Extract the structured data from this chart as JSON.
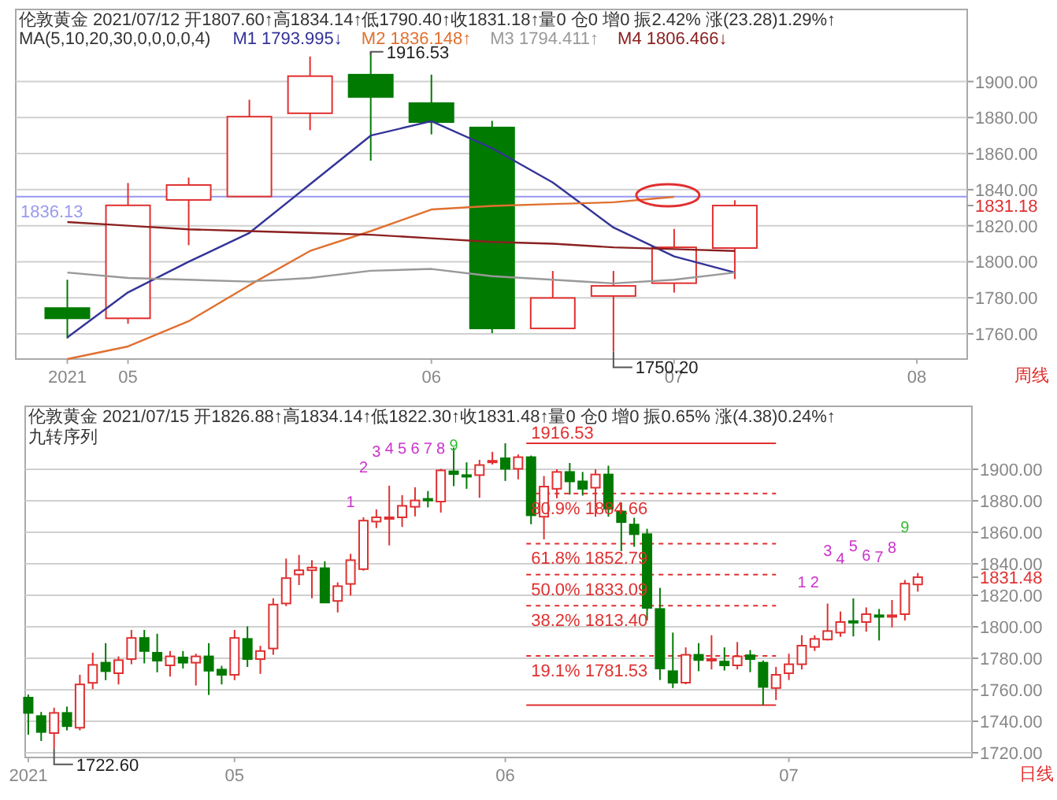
{
  "chart_data": [
    {
      "type": "candlestick",
      "title": "伦敦黄金 2021/07/12 开1807.60↑高1834.14↑低1790.40↑收1831.18↑量0 仓0 增0 振2.42% 涨(23.28)1.29%↑",
      "subtitle": "MA(5,10,20,30,0,0,0,0,4)",
      "categories": [
        "2021",
        "05",
        null,
        null,
        null,
        null,
        "06",
        null,
        null,
        null,
        "07",
        null,
        null,
        null,
        "08"
      ],
      "ohlc": [
        [
          1774.3,
          1790.0,
          1757.4,
          1768.6
        ],
        [
          1768.6,
          1843.7,
          1765.6,
          1831.3
        ],
        [
          1834.3,
          1846.7,
          1809.2,
          1842.6
        ],
        [
          1836.2,
          1889.9,
          1836.2,
          1880.5
        ],
        [
          1882.4,
          1913.9,
          1873.0,
          1903.0
        ],
        [
          1903.8,
          1916.53,
          1856.1,
          1891.4
        ],
        [
          1888.0,
          1903.8,
          1870.7,
          1877.5
        ],
        [
          1874.5,
          1878.2,
          1760.4,
          1763.0
        ],
        [
          1763.0,
          1794.9,
          1763.0,
          1779.9
        ],
        [
          1781.0,
          1794.9,
          1750.2,
          1786.6
        ],
        [
          1788.1,
          1818.2,
          1782.9,
          1808.0
        ],
        [
          1807.6,
          1834.14,
          1790.4,
          1831.18
        ],
        null,
        null,
        null
      ],
      "series": [
        {
          "type": "line",
          "name": "M1 1793.995↓",
          "color": "#333399",
          "values": [
            1758,
            1783,
            1800,
            1816,
            1843,
            1870,
            1878,
            1863,
            1844,
            1819,
            1803,
            1794,
            null,
            null,
            null
          ]
        },
        {
          "type": "line",
          "name": "M2 1836.148↑",
          "color": "#e07030",
          "values": [
            1746,
            1753,
            1767,
            1787,
            1806,
            1817,
            1829,
            1831,
            1832,
            1833,
            1836,
            null,
            null,
            null,
            null
          ]
        },
        {
          "type": "line",
          "name": "M3 1794.411↑",
          "color": "#999999",
          "values": [
            1794,
            1791,
            1790,
            1789,
            1791,
            1795,
            1796,
            1792,
            1790,
            1788,
            1790,
            1794,
            null,
            null,
            null
          ]
        },
        {
          "type": "line",
          "name": "M4 1806.466↓",
          "color": "#8b2020",
          "values": [
            1822,
            1820,
            1818,
            1817,
            1816,
            1815,
            1813,
            1811,
            1810,
            1808,
            1807,
            1806,
            null,
            null,
            null
          ]
        }
      ],
      "ylim": [
        1746,
        1940
      ],
      "yticks": [
        {
          "value": 1760,
          "label": "1760.00"
        },
        {
          "value": 1780,
          "label": "1780.00"
        },
        {
          "value": 1800,
          "label": "1800.00"
        },
        {
          "value": 1820,
          "label": "1820.00"
        },
        {
          "value": 1831.18,
          "label": "1831.18"
        },
        {
          "value": 1840,
          "label": "1840.00"
        },
        {
          "value": 1860,
          "label": "1860.00"
        },
        {
          "value": 1880,
          "label": "1880.00"
        },
        {
          "value": 1900,
          "label": "1900.00"
        }
      ],
      "ref_lines": [
        {
          "axis": "y",
          "value": 1836.13,
          "label": "1836.13",
          "color": "#9999ee",
          "line_style": "solid"
        }
      ],
      "annotations": [
        "1916.53",
        "1750.20",
        "周线"
      ],
      "grid": "y",
      "legend": "top left"
    },
    {
      "type": "candlestick",
      "title": "伦敦黄金 2021/07/15 开1826.88↑高1834.14↑低1822.30↑收1831.48↑量0 仓0 增0 振0.65% 涨(4.38)0.24%↑",
      "subtitle": "九转序列",
      "categories": [
        "2021",
        null,
        null,
        null,
        null,
        null,
        null,
        null,
        null,
        null,
        null,
        null,
        null,
        null,
        null,
        null,
        "05",
        null,
        null,
        null,
        null,
        null,
        null,
        null,
        null,
        null,
        null,
        null,
        null,
        null,
        null,
        null,
        null,
        null,
        null,
        null,
        null,
        "06",
        null,
        null,
        null,
        null,
        null,
        null,
        null,
        null,
        null,
        null,
        null,
        null,
        null,
        null,
        null,
        null,
        null,
        null,
        null,
        null,
        null,
        "07",
        null,
        null,
        null,
        null,
        null,
        null,
        null,
        null,
        null,
        null
      ],
      "ohlc": [
        [
          1755.0,
          1757.0,
          1731.5,
          1745.3
        ],
        [
          1743.3,
          1745.9,
          1727.5,
          1733.2
        ],
        [
          1732.5,
          1748.6,
          1722.6,
          1745.3
        ],
        [
          1745.3,
          1749.3,
          1734.2,
          1736.9
        ],
        [
          1735.9,
          1769.5,
          1734.2,
          1763.4
        ],
        [
          1764.4,
          1783.5,
          1760.4,
          1775.8
        ],
        [
          1777.2,
          1789.6,
          1766.1,
          1771.8
        ],
        [
          1770.5,
          1781.2,
          1763.4,
          1778.8
        ],
        [
          1779.5,
          1798.0,
          1776.2,
          1792.9
        ],
        [
          1792.9,
          1798.0,
          1776.8,
          1784.6
        ],
        [
          1783.5,
          1795.6,
          1771.1,
          1778.5
        ],
        [
          1775.5,
          1784.6,
          1768.4,
          1781.2
        ],
        [
          1780.5,
          1784.6,
          1773.5,
          1777.2
        ],
        [
          1777.2,
          1782.9,
          1762.7,
          1781.2
        ],
        [
          1781.2,
          1789.6,
          1756.7,
          1772.1
        ],
        [
          1772.8,
          1775.2,
          1763.4,
          1769.5
        ],
        [
          1769.5,
          1798.0,
          1766.1,
          1792.9
        ],
        [
          1792.3,
          1800.3,
          1774.5,
          1779.5
        ],
        [
          1779.5,
          1787.9,
          1770.1,
          1784.6
        ],
        [
          1786.2,
          1818.1,
          1782.2,
          1814.1
        ],
        [
          1814.8,
          1843.3,
          1813.1,
          1830.9
        ],
        [
          1833.2,
          1845.6,
          1826.5,
          1835.9
        ],
        [
          1835.9,
          1842.3,
          1818.1,
          1837.6
        ],
        [
          1837.2,
          1841.6,
          1815.4,
          1815.4
        ],
        [
          1816.4,
          1828.2,
          1809.1,
          1825.8
        ],
        [
          1827.2,
          1846.3,
          1819.8,
          1842.3
        ],
        [
          1836.6,
          1869.5,
          1835.6,
          1867.4
        ],
        [
          1866.8,
          1874.5,
          1862.7,
          1869.5
        ],
        [
          1869.2,
          1889.6,
          1851.7,
          1869.5
        ],
        [
          1869.5,
          1883.6,
          1863.4,
          1876.8
        ],
        [
          1876.2,
          1888.6,
          1870.1,
          1880.2
        ],
        [
          1881.2,
          1886.2,
          1875.8,
          1880.5
        ],
        [
          1879.5,
          1900.3,
          1872.5,
          1899.3
        ],
        [
          1898.7,
          1913.8,
          1889.3,
          1897.0
        ],
        [
          1896.3,
          1904.4,
          1887.6,
          1895.6
        ],
        [
          1896.3,
          1906.0,
          1881.9,
          1902.7
        ],
        [
          1904.4,
          1911.1,
          1903.0,
          1905.4
        ],
        [
          1907.0,
          1916.53,
          1892.6,
          1900.3
        ],
        [
          1900.3,
          1909.4,
          1893.6,
          1907.7
        ],
        [
          1907.7,
          1908.7,
          1865.1,
          1870.8
        ],
        [
          1869.9,
          1895.7,
          1855.5,
          1889.0
        ],
        [
          1887.6,
          1900.0,
          1881.6,
          1898.3
        ],
        [
          1898.3,
          1904.0,
          1883.9,
          1892.3
        ],
        [
          1892.3,
          1898.3,
          1883.3,
          1887.6
        ],
        [
          1888.3,
          1900.0,
          1869.9,
          1896.7
        ],
        [
          1896.7,
          1902.3,
          1869.9,
          1874.9
        ],
        [
          1873.2,
          1878.9,
          1848.1,
          1866.5
        ],
        [
          1864.9,
          1869.2,
          1850.8,
          1858.8
        ],
        [
          1858.8,
          1862.2,
          1804.0,
          1812.0
        ],
        [
          1811.3,
          1824.7,
          1766.2,
          1773.5
        ],
        [
          1771.8,
          1796.3,
          1761.1,
          1764.5
        ],
        [
          1764.5,
          1786.9,
          1763.5,
          1782.2
        ],
        [
          1782.2,
          1789.6,
          1771.8,
          1778.9
        ],
        [
          1778.9,
          1794.6,
          1772.9,
          1779.5
        ],
        [
          1777.9,
          1786.9,
          1772.2,
          1775.5
        ],
        [
          1775.5,
          1790.3,
          1772.9,
          1781.2
        ],
        [
          1781.9,
          1785.2,
          1771.2,
          1779.5
        ],
        [
          1777.2,
          1778.6,
          1750.2,
          1761.8
        ],
        [
          1761.1,
          1774.5,
          1753.5,
          1769.5
        ],
        [
          1770.5,
          1782.9,
          1766.2,
          1776.2
        ],
        [
          1776.2,
          1794.6,
          1772.9,
          1788.0
        ],
        [
          1787.2,
          1794.6,
          1784.6,
          1792.3
        ],
        [
          1791.9,
          1814.7,
          1791.3,
          1797.3
        ],
        [
          1796.3,
          1809.7,
          1793.6,
          1803.0
        ],
        [
          1803.6,
          1818.0,
          1793.9,
          1803.0
        ],
        [
          1803.0,
          1812.3,
          1796.9,
          1808.0
        ],
        [
          1807.3,
          1811.3,
          1791.3,
          1806.3
        ],
        [
          1806.3,
          1817.0,
          1799.6,
          1807.3
        ],
        [
          1808.0,
          1829.7,
          1804.0,
          1827.4
        ],
        [
          1826.88,
          1834.14,
          1822.3,
          1831.48
        ]
      ],
      "ylim": [
        1717,
        1940
      ],
      "yticks": [
        {
          "value": 1720,
          "label": "1720.00"
        },
        {
          "value": 1740,
          "label": "1740.00"
        },
        {
          "value": 1760,
          "label": "1760.00"
        },
        {
          "value": 1780,
          "label": "1780.00"
        },
        {
          "value": 1800,
          "label": "1800.00"
        },
        {
          "value": 1820,
          "label": "1820.00"
        },
        {
          "value": 1831.48,
          "label": "1831.48"
        },
        {
          "value": 1840,
          "label": "1840.00"
        },
        {
          "value": 1860,
          "label": "1860.00"
        },
        {
          "value": 1880,
          "label": "1880.00"
        },
        {
          "value": 1900,
          "label": "1900.00"
        }
      ],
      "ref_lines": [
        {
          "axis": "y",
          "value": 1916.53,
          "label": "1916.53",
          "color": "#e03030",
          "line_style": "solid"
        },
        {
          "axis": "y",
          "value": 1884.66,
          "label": "80.9% 1884.66",
          "color": "#e03030",
          "line_style": "dashed"
        },
        {
          "axis": "y",
          "value": 1852.79,
          "label": "61.8% 1852.79",
          "color": "#e03030",
          "line_style": "dashed"
        },
        {
          "axis": "y",
          "value": 1833.09,
          "label": "50.0% 1833.09",
          "color": "#e03030",
          "line_style": "dashed"
        },
        {
          "axis": "y",
          "value": 1813.4,
          "label": "38.2% 1813.40",
          "color": "#e03030",
          "line_style": "dashed"
        },
        {
          "axis": "y",
          "value": 1781.53,
          "label": "19.1% 1781.53",
          "color": "#e03030",
          "line_style": "dashed"
        },
        {
          "axis": "y",
          "value": 1750.2,
          "label": null,
          "color": "#e03030",
          "line_style": "solid"
        }
      ],
      "annotations": [
        "1722.60",
        "1",
        "2",
        "3",
        "4",
        "5",
        "6",
        "7",
        "8",
        "9",
        "1",
        "2",
        "3",
        "4",
        "5",
        "6",
        "7",
        "8",
        "9",
        "日线"
      ],
      "grid": "y"
    }
  ]
}
